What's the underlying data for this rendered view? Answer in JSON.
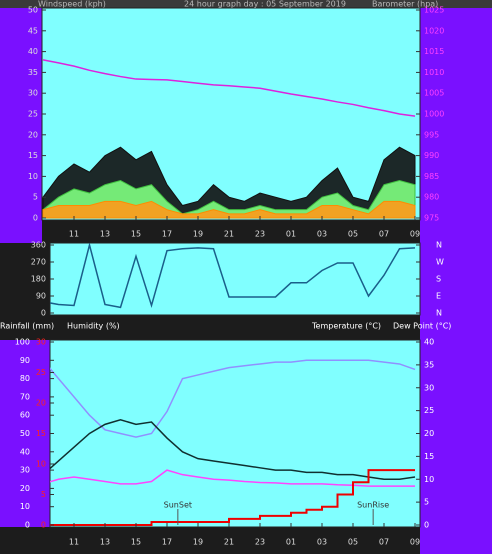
{
  "chart_data": [
    {
      "type": "line",
      "title": "24 hour graph day : 05 September 2019",
      "y_label": "Windspeed (kph)",
      "y2_label": "Barometer (hpa)",
      "categories": [
        null,
        null,
        "11",
        null,
        "13",
        null,
        "15",
        null,
        "17",
        null,
        "19",
        null,
        "21",
        null,
        "23",
        null,
        "01",
        null,
        "03",
        null,
        "05",
        null,
        "07",
        null,
        "09"
      ],
      "ylim": [
        0,
        50
      ],
      "yticks": [
        0,
        5,
        10,
        15,
        20,
        25,
        30,
        35,
        40,
        45,
        50
      ],
      "y2lim": [
        975,
        1025
      ],
      "y2ticks": [
        975,
        980,
        985,
        990,
        995,
        1000,
        1005,
        1010,
        1015,
        1020,
        1025
      ],
      "background": "#80ffff",
      "series": [
        {
          "color": "#111111",
          "fill": "#111111",
          "values": [
            5,
            10,
            13,
            11,
            15,
            17,
            14,
            16,
            8,
            3,
            4,
            8,
            5,
            4,
            6,
            5,
            4,
            5,
            9,
            12,
            5,
            4,
            14,
            17,
            15
          ]
        },
        {
          "color": "#40c040",
          "fill": "#80ff80",
          "values": [
            2,
            5,
            7,
            6,
            8,
            9,
            7,
            8,
            4,
            1,
            2,
            4,
            2,
            2,
            3,
            2,
            2,
            2,
            5,
            6,
            3,
            2,
            8,
            9,
            8
          ]
        },
        {
          "color": "#ff8c00",
          "fill": "#ff9a1a",
          "values": [
            2,
            3,
            3,
            3,
            4,
            4,
            3,
            4,
            2,
            1,
            1,
            2,
            1,
            1,
            2,
            1,
            1,
            1,
            3,
            3,
            2,
            1,
            4,
            4,
            3
          ]
        },
        {
          "color": "#dd22dd",
          "axis": "y2",
          "values": [
            1013,
            1012.3,
            1011.5,
            1010.5,
            1009.7,
            1009,
            1008.4,
            1008.3,
            1008.2,
            1007.8,
            1007.4,
            1007,
            1006.8,
            1006.5,
            1006.2,
            1005.5,
            1004.8,
            1004.2,
            1003.6,
            1002.9,
            1002.3,
            1001.5,
            1000.8,
            1000,
            999.5
          ]
        }
      ]
    },
    {
      "type": "line",
      "ylim": [
        0,
        360
      ],
      "yticks": [
        0,
        90,
        180,
        270,
        360
      ],
      "y2lim": [
        0,
        360
      ],
      "y2ticks": [
        {
          "value": 0,
          "label": "N"
        },
        {
          "value": 90,
          "label": "E"
        },
        {
          "value": 180,
          "label": "S"
        },
        {
          "value": 270,
          "label": "W"
        },
        {
          "value": 360,
          "label": "N"
        }
      ],
      "background": "#80ffff",
      "series": [
        {
          "color": "#1a5f8a",
          "values": [
            60,
            45,
            40,
            360,
            45,
            30,
            300,
            40,
            330,
            340,
            345,
            340,
            85,
            85,
            85,
            85,
            160,
            160,
            225,
            265,
            265,
            90,
            200,
            340,
            345
          ]
        }
      ]
    },
    {
      "type": "line",
      "y_label": "Humidity (%)",
      "y3_label": "Rainfall (mm)",
      "y2_label": "Temperature (°C)",
      "y4_label": "Dew Point (°C)",
      "categories": [
        null,
        null,
        "11",
        null,
        "13",
        null,
        "15",
        null,
        "17",
        null,
        "19",
        null,
        "21",
        null,
        "23",
        null,
        "01",
        null,
        "03",
        null,
        "05",
        null,
        "07",
        null,
        "09"
      ],
      "ylim": [
        0,
        100
      ],
      "yticks": [
        0,
        10,
        20,
        30,
        40,
        50,
        60,
        70,
        80,
        90,
        100
      ],
      "y2lim": [
        0,
        40
      ],
      "y2ticks": [
        0,
        5,
        10,
        15,
        20,
        25,
        30,
        35,
        40
      ],
      "y3lim": [
        0,
        30
      ],
      "y3ticks": [
        0,
        5,
        10,
        15,
        20,
        25,
        30
      ],
      "background": "#80ffff",
      "annotations": [
        {
          "text": "SunSet",
          "x": 8.7
        },
        {
          "text": "SunRise",
          "x": 21.3
        }
      ],
      "series": [
        {
          "color": "#9090ff",
          "values": [
            90,
            80,
            70,
            60,
            52,
            50,
            48,
            50,
            62,
            80,
            82,
            84,
            86,
            87,
            88,
            89,
            89,
            90,
            90,
            90,
            90,
            90,
            89,
            88,
            85
          ]
        },
        {
          "color": "#103030",
          "axis": "y2",
          "values": [
            11,
            14,
            17,
            20,
            22,
            23,
            22,
            22.5,
            19,
            16,
            14.5,
            14,
            13.5,
            13,
            12.5,
            12,
            12,
            11.5,
            11.5,
            11,
            11,
            10.5,
            10,
            10,
            10.5
          ]
        },
        {
          "color": "#ff44ff",
          "axis": "y2",
          "values": [
            9,
            10,
            10.5,
            10,
            9.5,
            9,
            9,
            9.5,
            12,
            11,
            10.5,
            10,
            9.8,
            9.5,
            9.3,
            9.2,
            9,
            9,
            9,
            8.8,
            8.7,
            8.5,
            8.5,
            8.5,
            8.5
          ]
        },
        {
          "color": "#ee0000",
          "axis": "y3",
          "step": true,
          "values": [
            0,
            0,
            0,
            0,
            0,
            0,
            0,
            0.5,
            0.5,
            0.5,
            0.5,
            0.5,
            1,
            1,
            1.5,
            1.5,
            2,
            2.5,
            3,
            5,
            7,
            9,
            9,
            9,
            9
          ]
        }
      ]
    }
  ]
}
